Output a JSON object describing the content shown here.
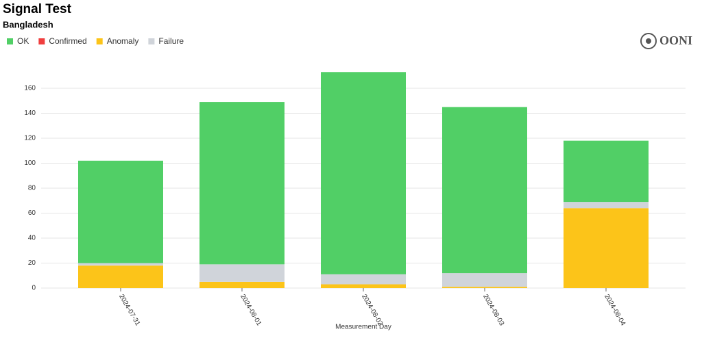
{
  "chart_data": {
    "type": "stacked_bar",
    "title": "Signal Test",
    "subtitle": "Bangladesh",
    "logo": "OONI",
    "x_label": "Measurement Day",
    "categories": [
      "2024-07-31",
      "2024-08-01",
      "2024-08-02",
      "2024-08-03",
      "2024-08-04"
    ],
    "series": [
      {
        "name": "Anomaly",
        "color": "#fcc419",
        "values": [
          18,
          5,
          3,
          1,
          64
        ]
      },
      {
        "name": "Failure",
        "color": "#d0d4da",
        "values": [
          2,
          14,
          8,
          11,
          5
        ]
      },
      {
        "name": "Confirmed",
        "color": "#f03e3e",
        "values": [
          0,
          0,
          0,
          0,
          0
        ]
      },
      {
        "name": "OK",
        "color": "#51cf66",
        "values": [
          82,
          130,
          162,
          133,
          49
        ]
      }
    ],
    "legend_order": [
      3,
      2,
      0,
      1
    ],
    "ylim": [
      0,
      180
    ],
    "yticks": [
      0,
      20,
      40,
      60,
      80,
      100,
      120,
      140,
      160
    ],
    "grid": true
  }
}
